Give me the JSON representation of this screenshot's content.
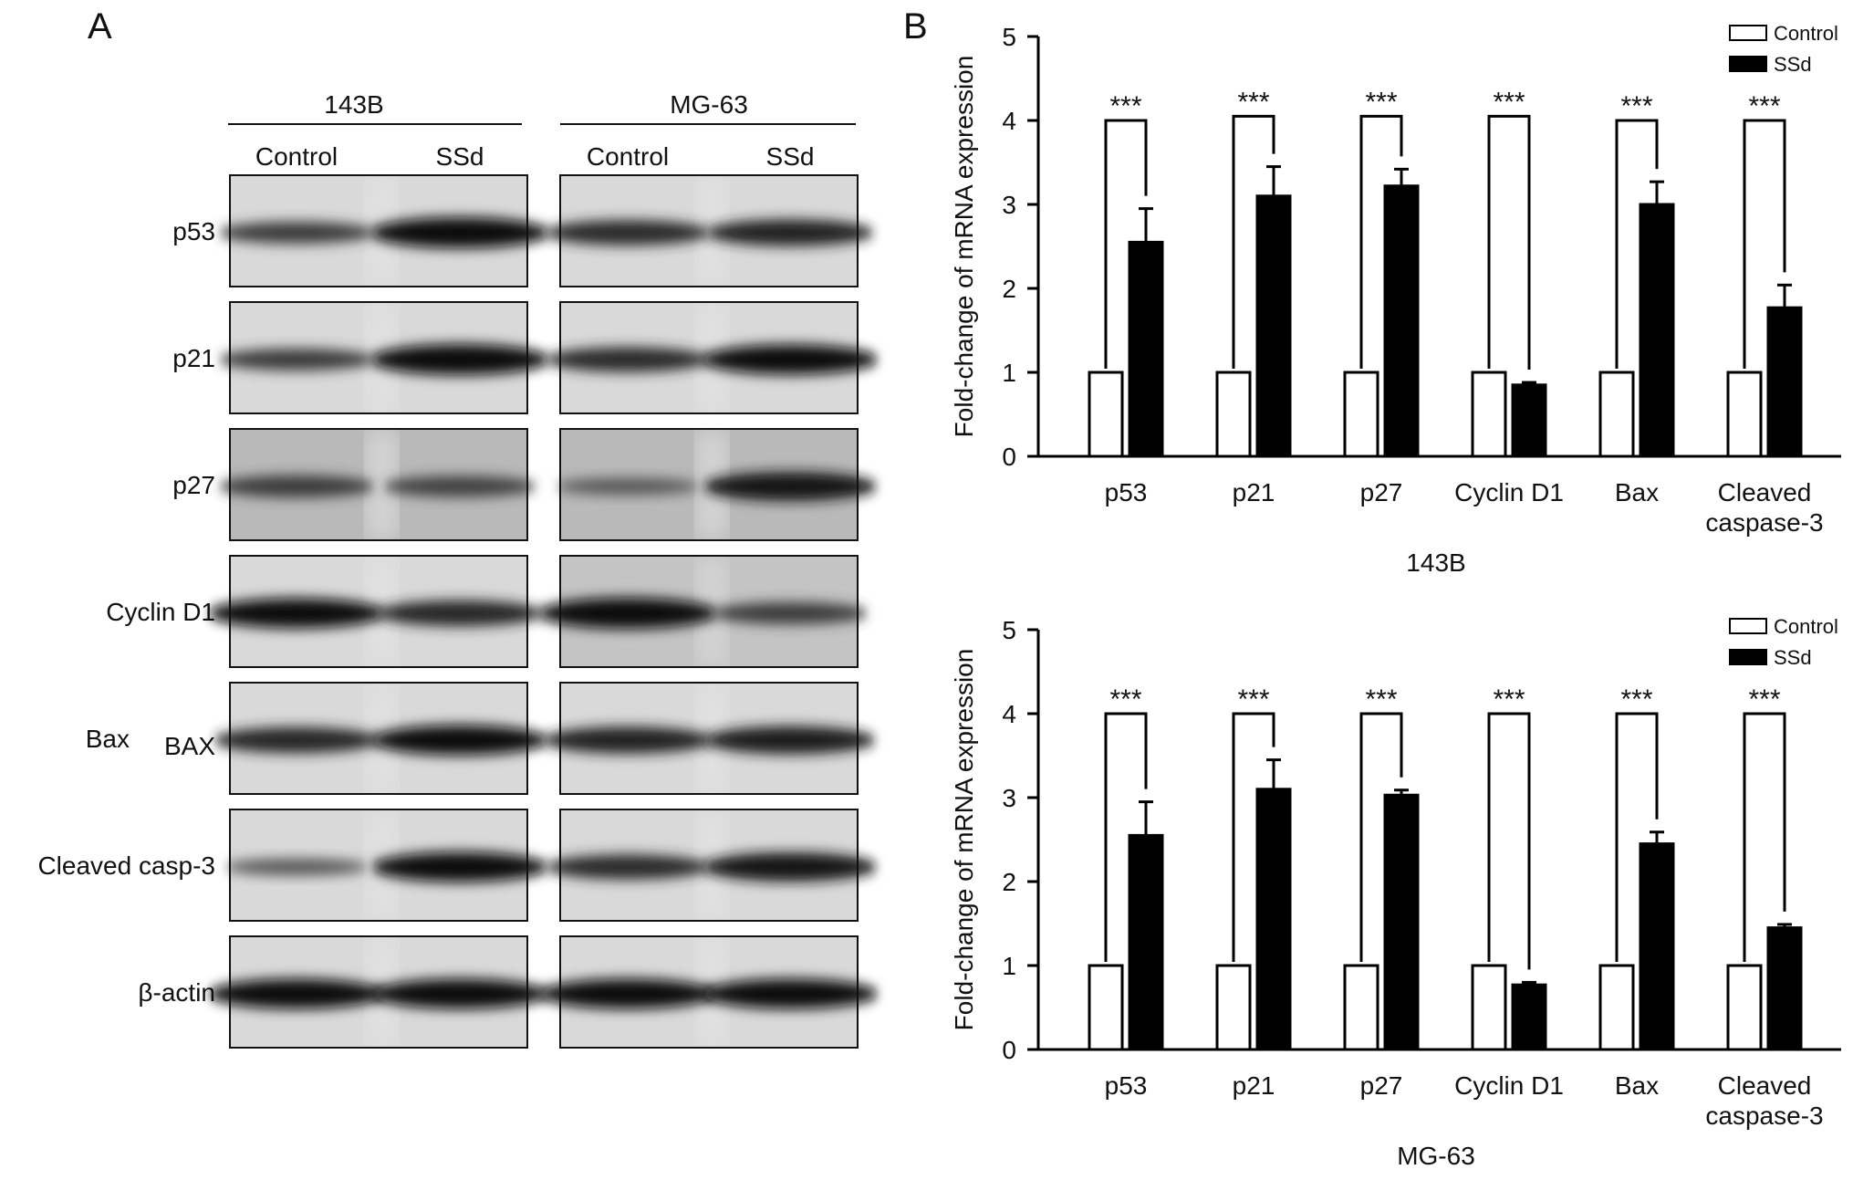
{
  "panel_a": {
    "letter": "A",
    "cell_lines": [
      {
        "name": "143B",
        "conditions": [
          "Control",
          "SSd"
        ]
      },
      {
        "name": "MG-63",
        "conditions": [
          "Control",
          "SSd"
        ]
      }
    ],
    "rows": [
      {
        "label": "p53",
        "extra_label": "",
        "bands": [
          [
            0.55,
            1.0
          ],
          [
            0.72,
            0.78
          ]
        ]
      },
      {
        "label": "p21",
        "extra_label": "",
        "bands": [
          [
            0.55,
            1.0
          ],
          [
            0.7,
            0.95
          ]
        ]
      },
      {
        "label": "p27",
        "extra_label": "",
        "bands": [
          [
            0.55,
            0.5
          ],
          [
            0.3,
            0.9
          ]
        ]
      },
      {
        "label": "Cyclin D1",
        "extra_label": "",
        "bands": [
          [
            0.95,
            0.75
          ],
          [
            1.0,
            0.55
          ]
        ]
      },
      {
        "label": "Bax",
        "extra_label": "BAX",
        "bands": [
          [
            0.75,
            0.95
          ],
          [
            0.8,
            0.85
          ]
        ]
      },
      {
        "label": "Cleaved casp-3",
        "extra_label": "",
        "bands": [
          [
            0.3,
            0.95
          ],
          [
            0.7,
            0.9
          ]
        ]
      },
      {
        "label": "β-actin",
        "extra_label": "",
        "bands": [
          [
            0.95,
            0.95
          ],
          [
            0.95,
            0.95
          ]
        ]
      }
    ]
  },
  "panel_b": {
    "letter": "B"
  },
  "colors": {
    "control": "#ffffff",
    "ssd": "#000000",
    "axis": "#000000"
  },
  "chart_data": [
    {
      "type": "bar",
      "title": "143B",
      "xlabel": "143B",
      "ylabel": "Fold-change of mRNA expression",
      "categories": [
        "p53",
        "p21",
        "p27",
        "Cyclin D1",
        "Bax",
        "Cleaved caspase-3"
      ],
      "category_lines": [
        [
          "p53"
        ],
        [
          "p21"
        ],
        [
          "p27"
        ],
        [
          "Cyclin D1"
        ],
        [
          "Bax"
        ],
        [
          "Cleaved",
          "caspase-3"
        ]
      ],
      "ylim": [
        0,
        5
      ],
      "yticks": [
        0,
        1,
        2,
        3,
        4,
        5
      ],
      "legend_position": "top-right",
      "series": [
        {
          "name": "Control",
          "values": [
            1,
            1,
            1,
            1,
            1,
            1
          ],
          "errors": [
            0,
            0,
            0,
            0,
            0,
            0
          ]
        },
        {
          "name": "SSd",
          "values": [
            2.55,
            3.1,
            3.22,
            0.85,
            3.0,
            1.77
          ],
          "errors": [
            0.4,
            0.35,
            0.2,
            0.03,
            0.27,
            0.27
          ]
        }
      ],
      "significance": [
        "***",
        "***",
        "***",
        "***",
        "***",
        "***"
      ],
      "sig_bracket_y": [
        4.0,
        4.05,
        4.05,
        4.05,
        4.0,
        4.0
      ]
    },
    {
      "type": "bar",
      "title": "MG-63",
      "xlabel": "MG-63",
      "ylabel": "Fold-change of mRNA expression",
      "categories": [
        "p53",
        "p21",
        "p27",
        "Cyclin D1",
        "Bax",
        "Cleaved caspase-3"
      ],
      "category_lines": [
        [
          "p53"
        ],
        [
          "p21"
        ],
        [
          "p27"
        ],
        [
          "Cyclin D1"
        ],
        [
          "Bax"
        ],
        [
          "Cleaved",
          "caspase-3"
        ]
      ],
      "ylim": [
        0,
        5
      ],
      "yticks": [
        0,
        1,
        2,
        3,
        4,
        5
      ],
      "legend_position": "top-right",
      "series": [
        {
          "name": "Control",
          "values": [
            1,
            1,
            1,
            1,
            1,
            1
          ],
          "errors": [
            0,
            0,
            0,
            0,
            0,
            0
          ]
        },
        {
          "name": "SSd",
          "values": [
            2.55,
            3.1,
            3.03,
            0.77,
            2.45,
            1.45
          ],
          "errors": [
            0.4,
            0.35,
            0.06,
            0.03,
            0.14,
            0.04
          ]
        }
      ],
      "significance": [
        "***",
        "***",
        "***",
        "***",
        "***",
        "***"
      ],
      "sig_bracket_y": [
        4.0,
        4.0,
        4.0,
        4.0,
        4.0,
        4.0
      ]
    }
  ]
}
